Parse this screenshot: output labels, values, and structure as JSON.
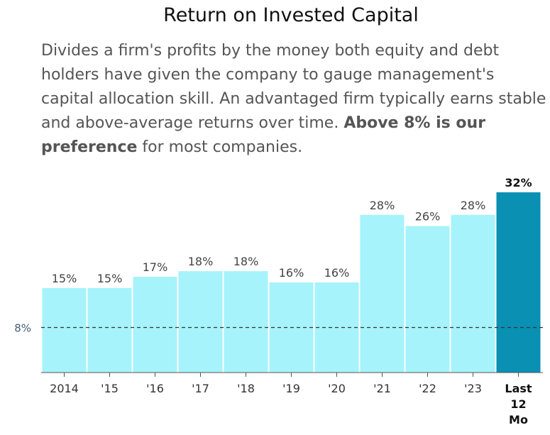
{
  "title": "Return on Invested Capital",
  "description": {
    "part1": "Divides a firm's profits by the money both equity and debt holders have given the company to gauge management's capital allocation skill. An advantaged firm typically earns stable and above-average returns over time. ",
    "bold": "Above 8% is our preference",
    "part2": " for most companies."
  },
  "chart_data": {
    "type": "bar",
    "categories": [
      "2014",
      "'15",
      "'16",
      "'17",
      "'18",
      "'19",
      "'20",
      "'21",
      "'22",
      "'23",
      "Last 12 Mo"
    ],
    "values": [
      15,
      15,
      17,
      18,
      18,
      16,
      16,
      28,
      26,
      28,
      32
    ],
    "data_labels": [
      "15%",
      "15%",
      "17%",
      "18%",
      "18%",
      "16%",
      "16%",
      "28%",
      "26%",
      "28%",
      "32%"
    ],
    "highlight_index": 10,
    "reference_line": {
      "value": 8,
      "label": "8%"
    },
    "ylim": [
      0,
      32
    ],
    "colors": {
      "bar": "#a6f3fc",
      "highlight": "#0990b3",
      "reference": "#333333",
      "ref_label": "#44607a",
      "label": "#444444"
    }
  }
}
